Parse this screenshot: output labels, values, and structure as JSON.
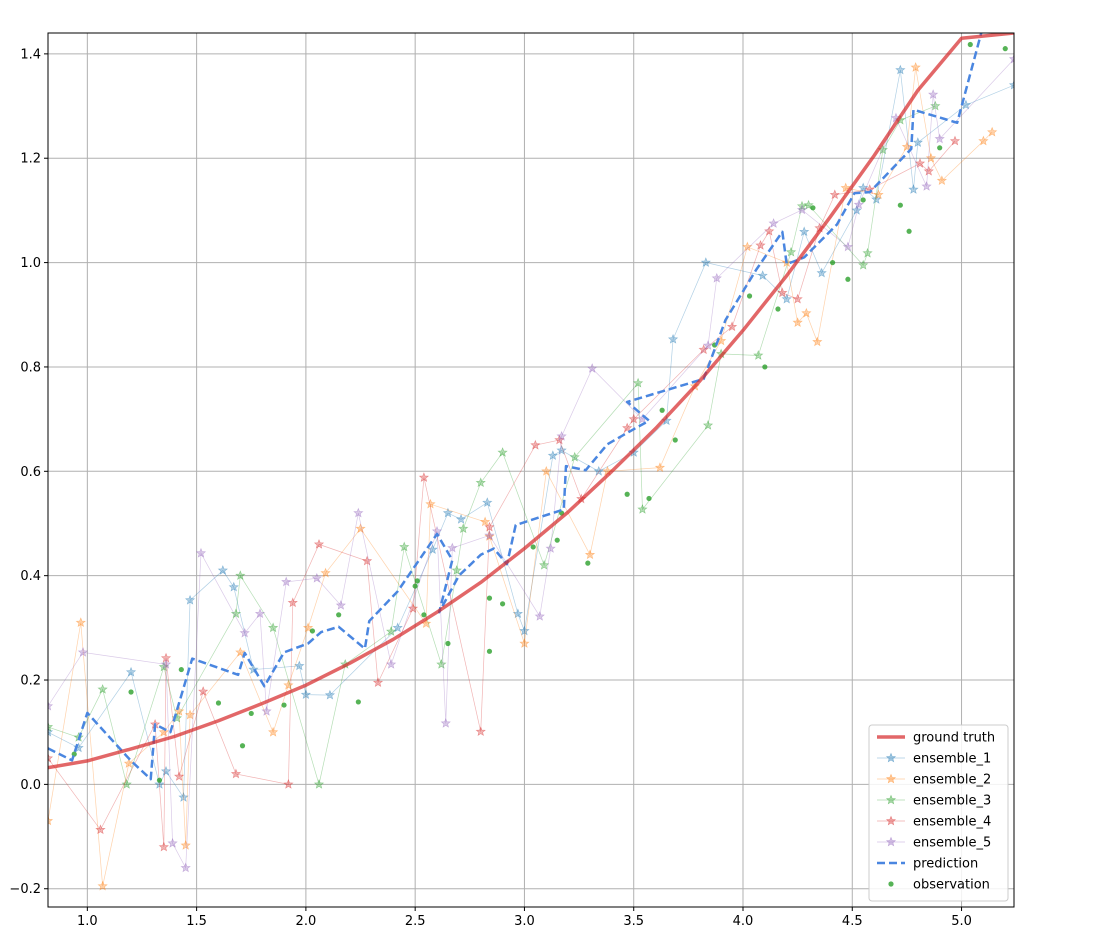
{
  "chart_data": {
    "type": "line",
    "title": "",
    "xlabel": "",
    "ylabel": "",
    "xlim": [
      0.82,
      5.24
    ],
    "ylim": [
      -0.235,
      1.44
    ],
    "grid": true,
    "legend_placement": "lower-right",
    "x_ticks": [
      {
        "value": 1.0,
        "label": "1.0"
      },
      {
        "value": 1.5,
        "label": "1.5"
      },
      {
        "value": 2.0,
        "label": "2.0"
      },
      {
        "value": 2.5,
        "label": "2.5"
      },
      {
        "value": 3.0,
        "label": "3.0"
      },
      {
        "value": 3.5,
        "label": "3.5"
      },
      {
        "value": 4.0,
        "label": "4.0"
      },
      {
        "value": 4.5,
        "label": "4.5"
      },
      {
        "value": 5.0,
        "label": "5.0"
      }
    ],
    "y_ticks": [
      {
        "value": -0.2,
        "label": "−0.2"
      },
      {
        "value": 0.0,
        "label": "0.0"
      },
      {
        "value": 0.2,
        "label": "0.2"
      },
      {
        "value": 0.4,
        "label": "0.4"
      },
      {
        "value": 0.6,
        "label": "0.6"
      },
      {
        "value": 0.8,
        "label": "0.8"
      },
      {
        "value": 1.0,
        "label": "1.0"
      },
      {
        "value": 1.2,
        "label": "1.2"
      },
      {
        "value": 1.4,
        "label": "1.4"
      }
    ],
    "series": [
      {
        "name": "ground truth",
        "kind": "line",
        "color": "#d62728",
        "points": [
          [
            0.82,
            0.032
          ],
          [
            1.0,
            0.045
          ],
          [
            1.2,
            0.068
          ],
          [
            1.4,
            0.092
          ],
          [
            1.6,
            0.122
          ],
          [
            1.8,
            0.155
          ],
          [
            2.0,
            0.19
          ],
          [
            2.2,
            0.232
          ],
          [
            2.4,
            0.278
          ],
          [
            2.6,
            0.33
          ],
          [
            2.8,
            0.387
          ],
          [
            3.0,
            0.452
          ],
          [
            3.2,
            0.522
          ],
          [
            3.4,
            0.6
          ],
          [
            3.6,
            0.682
          ],
          [
            3.8,
            0.772
          ],
          [
            4.0,
            0.87
          ],
          [
            4.2,
            0.975
          ],
          [
            4.4,
            1.088
          ],
          [
            4.6,
            1.205
          ],
          [
            4.8,
            1.33
          ],
          [
            5.0,
            1.43
          ],
          [
            5.24,
            1.44
          ]
        ]
      },
      {
        "name": "ensemble_1",
        "kind": "ensemble",
        "color": "#1f77b4",
        "points": [
          [
            0.82,
            0.1
          ],
          [
            0.96,
            0.07
          ],
          [
            1.2,
            0.215
          ],
          [
            1.33,
            0.0
          ],
          [
            1.36,
            0.025
          ],
          [
            1.44,
            -0.025
          ],
          [
            1.47,
            0.353
          ],
          [
            1.62,
            0.41
          ],
          [
            1.67,
            0.378
          ],
          [
            1.76,
            0.22
          ],
          [
            1.97,
            0.227
          ],
          [
            2.0,
            0.172
          ],
          [
            2.11,
            0.171
          ],
          [
            2.42,
            0.3
          ],
          [
            2.58,
            0.45
          ],
          [
            2.65,
            0.52
          ],
          [
            2.71,
            0.508
          ],
          [
            2.83,
            0.54
          ],
          [
            2.97,
            0.327
          ],
          [
            3.0,
            0.294
          ],
          [
            3.13,
            0.63
          ],
          [
            3.17,
            0.64
          ],
          [
            3.34,
            0.6
          ],
          [
            3.5,
            0.636
          ],
          [
            3.65,
            0.697
          ],
          [
            3.68,
            0.853
          ],
          [
            3.83,
            1.0
          ],
          [
            4.09,
            0.975
          ],
          [
            4.2,
            0.93
          ],
          [
            4.28,
            1.059
          ],
          [
            4.36,
            0.98
          ],
          [
            4.52,
            1.1
          ],
          [
            4.55,
            1.143
          ],
          [
            4.61,
            1.121
          ],
          [
            4.72,
            1.369
          ],
          [
            4.78,
            1.14
          ],
          [
            4.8,
            1.23
          ],
          [
            5.02,
            1.302
          ],
          [
            5.24,
            1.34
          ]
        ]
      },
      {
        "name": "ensemble_2",
        "kind": "ensemble",
        "color": "#ff7f0e",
        "points": [
          [
            0.82,
            -0.07
          ],
          [
            0.97,
            0.31
          ],
          [
            1.07,
            -0.195
          ],
          [
            1.19,
            0.04
          ],
          [
            1.35,
            0.1
          ],
          [
            1.42,
            0.14
          ],
          [
            1.45,
            -0.117
          ],
          [
            1.47,
            0.133
          ],
          [
            1.7,
            0.253
          ],
          [
            1.85,
            0.1
          ],
          [
            1.92,
            0.19
          ],
          [
            2.01,
            0.3
          ],
          [
            2.09,
            0.405
          ],
          [
            2.25,
            0.49
          ],
          [
            2.55,
            0.308
          ],
          [
            2.57,
            0.537
          ],
          [
            2.82,
            0.503
          ],
          [
            2.84,
            0.475
          ],
          [
            3.0,
            0.27
          ],
          [
            3.1,
            0.6
          ],
          [
            3.3,
            0.44
          ],
          [
            3.38,
            0.6
          ],
          [
            3.62,
            0.607
          ],
          [
            3.78,
            0.763
          ],
          [
            3.9,
            0.85
          ],
          [
            4.02,
            1.03
          ],
          [
            4.2,
            1.0
          ],
          [
            4.25,
            0.885
          ],
          [
            4.29,
            0.903
          ],
          [
            4.34,
            0.848
          ],
          [
            4.47,
            1.143
          ],
          [
            4.62,
            1.13
          ],
          [
            4.75,
            1.222
          ],
          [
            4.79,
            1.374
          ],
          [
            4.86,
            1.2
          ],
          [
            4.91,
            1.157
          ],
          [
            5.1,
            1.233
          ],
          [
            5.14,
            1.25
          ]
        ]
      },
      {
        "name": "ensemble_3",
        "kind": "ensemble",
        "color": "#2ca02c",
        "points": [
          [
            0.82,
            0.11
          ],
          [
            0.96,
            0.09
          ],
          [
            1.07,
            0.182
          ],
          [
            1.18,
            0.0
          ],
          [
            1.35,
            0.225
          ],
          [
            1.41,
            0.127
          ],
          [
            1.68,
            0.327
          ],
          [
            1.7,
            0.4
          ],
          [
            1.85,
            0.3
          ],
          [
            2.06,
            0.0
          ],
          [
            2.18,
            0.23
          ],
          [
            2.39,
            0.293
          ],
          [
            2.45,
            0.455
          ],
          [
            2.62,
            0.23
          ],
          [
            2.69,
            0.41
          ],
          [
            2.72,
            0.49
          ],
          [
            2.8,
            0.578
          ],
          [
            2.9,
            0.636
          ],
          [
            3.09,
            0.42
          ],
          [
            3.23,
            0.627
          ],
          [
            3.52,
            0.769
          ],
          [
            3.54,
            0.527
          ],
          [
            3.84,
            0.688
          ],
          [
            3.9,
            0.825
          ],
          [
            4.07,
            0.822
          ],
          [
            4.22,
            1.02
          ],
          [
            4.27,
            1.108
          ],
          [
            4.3,
            1.11
          ],
          [
            4.55,
            0.995
          ],
          [
            4.57,
            1.018
          ],
          [
            4.64,
            1.216
          ],
          [
            4.72,
            1.273
          ],
          [
            4.88,
            1.3
          ]
        ]
      },
      {
        "name": "ensemble_4",
        "kind": "ensemble",
        "color": "#d62728",
        "points": [
          [
            0.82,
            0.05
          ],
          [
            1.06,
            -0.087
          ],
          [
            1.31,
            0.115
          ],
          [
            1.35,
            -0.12
          ],
          [
            1.36,
            0.242
          ],
          [
            1.42,
            0.015
          ],
          [
            1.53,
            0.178
          ],
          [
            1.68,
            0.02
          ],
          [
            1.92,
            0.0
          ],
          [
            1.94,
            0.348
          ],
          [
            2.06,
            0.46
          ],
          [
            2.28,
            0.428
          ],
          [
            2.33,
            0.195
          ],
          [
            2.49,
            0.337
          ],
          [
            2.54,
            0.588
          ],
          [
            2.8,
            0.101
          ],
          [
            2.84,
            0.493
          ],
          [
            3.05,
            0.65
          ],
          [
            3.16,
            0.66
          ],
          [
            3.26,
            0.547
          ],
          [
            3.47,
            0.683
          ],
          [
            3.5,
            0.7
          ],
          [
            3.82,
            0.833
          ],
          [
            3.95,
            0.877
          ],
          [
            4.08,
            1.033
          ],
          [
            4.12,
            1.06
          ],
          [
            4.18,
            0.942
          ],
          [
            4.25,
            0.93
          ],
          [
            4.35,
            1.066
          ],
          [
            4.42,
            1.13
          ],
          [
            4.58,
            1.14
          ],
          [
            4.81,
            1.19
          ],
          [
            4.85,
            1.175
          ],
          [
            4.97,
            1.233
          ]
        ]
      },
      {
        "name": "ensemble_5",
        "kind": "ensemble",
        "color": "#9467bd",
        "points": [
          [
            0.82,
            0.15
          ],
          [
            0.98,
            0.253
          ],
          [
            1.36,
            0.23
          ],
          [
            1.39,
            -0.113
          ],
          [
            1.45,
            -0.16
          ],
          [
            1.52,
            0.443
          ],
          [
            1.72,
            0.29
          ],
          [
            1.79,
            0.327
          ],
          [
            1.82,
            0.14
          ],
          [
            1.91,
            0.388
          ],
          [
            2.05,
            0.395
          ],
          [
            2.16,
            0.343
          ],
          [
            2.24,
            0.52
          ],
          [
            2.39,
            0.23
          ],
          [
            2.6,
            0.485
          ],
          [
            2.64,
            0.117
          ],
          [
            2.67,
            0.453
          ],
          [
            2.84,
            0.477
          ],
          [
            3.07,
            0.322
          ],
          [
            3.12,
            0.452
          ],
          [
            3.17,
            0.667
          ],
          [
            3.31,
            0.797
          ],
          [
            3.54,
            0.7
          ],
          [
            3.84,
            0.841
          ],
          [
            3.88,
            0.97
          ],
          [
            4.14,
            1.075
          ],
          [
            4.27,
            1.101
          ],
          [
            4.48,
            1.03
          ],
          [
            4.53,
            1.111
          ],
          [
            4.7,
            1.277
          ],
          [
            4.84,
            1.146
          ],
          [
            4.87,
            1.322
          ],
          [
            4.9,
            1.237
          ],
          [
            5.24,
            1.39
          ]
        ]
      },
      {
        "name": "prediction",
        "kind": "dashed",
        "color": "#4a86e0",
        "points": [
          [
            0.82,
            0.069
          ],
          [
            0.93,
            0.046
          ],
          [
            1.0,
            0.137
          ],
          [
            1.2,
            0.045
          ],
          [
            1.29,
            0.01
          ],
          [
            1.31,
            0.115
          ],
          [
            1.38,
            0.1
          ],
          [
            1.48,
            0.241
          ],
          [
            1.69,
            0.21
          ],
          [
            1.72,
            0.252
          ],
          [
            1.81,
            0.188
          ],
          [
            1.9,
            0.253
          ],
          [
            2.01,
            0.27
          ],
          [
            2.07,
            0.292
          ],
          [
            2.15,
            0.302
          ],
          [
            2.27,
            0.26
          ],
          [
            2.29,
            0.313
          ],
          [
            2.42,
            0.37
          ],
          [
            2.6,
            0.48
          ],
          [
            2.67,
            0.43
          ],
          [
            2.61,
            0.33
          ],
          [
            2.7,
            0.4
          ],
          [
            2.8,
            0.44
          ],
          [
            2.86,
            0.452
          ],
          [
            2.92,
            0.422
          ],
          [
            2.96,
            0.497
          ],
          [
            3.18,
            0.527
          ],
          [
            3.19,
            0.61
          ],
          [
            3.28,
            0.602
          ],
          [
            3.38,
            0.652
          ],
          [
            3.48,
            0.676
          ],
          [
            3.57,
            0.697
          ],
          [
            3.47,
            0.733
          ],
          [
            3.82,
            0.777
          ],
          [
            3.92,
            0.89
          ],
          [
            4.06,
            0.986
          ],
          [
            4.18,
            1.059
          ],
          [
            4.2,
            0.997
          ],
          [
            4.28,
            1.01
          ],
          [
            4.43,
            1.073
          ],
          [
            4.51,
            1.133
          ],
          [
            4.58,
            1.135
          ],
          [
            4.77,
            1.218
          ],
          [
            4.78,
            1.293
          ],
          [
            4.98,
            1.268
          ],
          [
            5.09,
            1.44
          ]
        ]
      },
      {
        "name": "observation",
        "kind": "scatter",
        "color": "#2ca02c",
        "points": [
          [
            0.94,
            0.058
          ],
          [
            1.2,
            0.177
          ],
          [
            1.33,
            0.008
          ],
          [
            1.43,
            0.22
          ],
          [
            1.6,
            0.156
          ],
          [
            1.71,
            0.074
          ],
          [
            1.75,
            0.136
          ],
          [
            1.9,
            0.152
          ],
          [
            2.03,
            0.294
          ],
          [
            2.15,
            0.325
          ],
          [
            2.24,
            0.158
          ],
          [
            2.5,
            0.38
          ],
          [
            2.54,
            0.325
          ],
          [
            2.51,
            0.39
          ],
          [
            2.65,
            0.27
          ],
          [
            2.84,
            0.357
          ],
          [
            2.84,
            0.255
          ],
          [
            2.9,
            0.346
          ],
          [
            3.04,
            0.455
          ],
          [
            3.15,
            0.468
          ],
          [
            3.17,
            0.52
          ],
          [
            3.29,
            0.424
          ],
          [
            3.47,
            0.556
          ],
          [
            3.57,
            0.548
          ],
          [
            3.63,
            0.717
          ],
          [
            3.69,
            0.66
          ],
          [
            3.87,
            0.842
          ],
          [
            4.03,
            0.936
          ],
          [
            4.1,
            0.8
          ],
          [
            4.16,
            0.911
          ],
          [
            4.32,
            1.105
          ],
          [
            4.41,
            1.0
          ],
          [
            4.48,
            0.968
          ],
          [
            4.55,
            1.12
          ],
          [
            4.72,
            1.11
          ],
          [
            4.76,
            1.06
          ],
          [
            4.9,
            1.22
          ],
          [
            5.04,
            1.418
          ],
          [
            5.2,
            1.41
          ]
        ]
      }
    ]
  }
}
